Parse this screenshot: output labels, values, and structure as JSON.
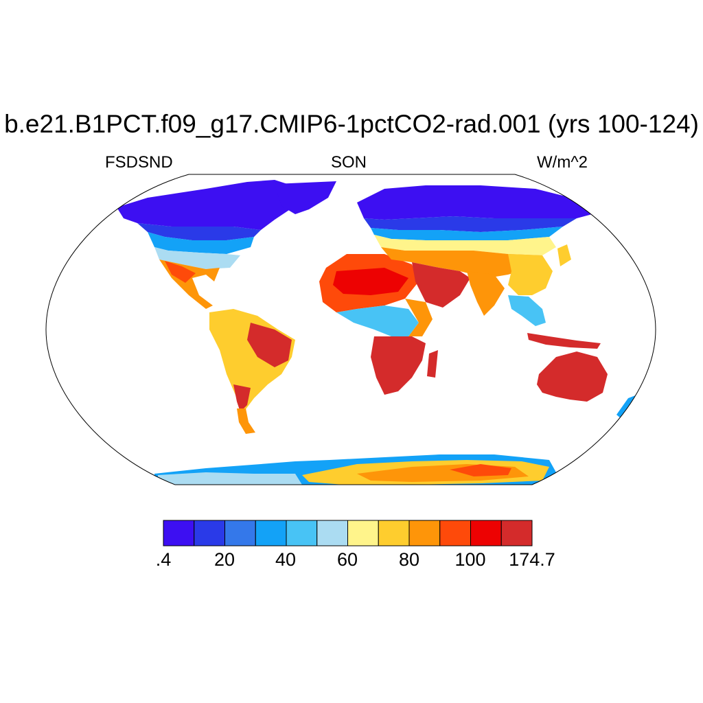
{
  "title": "b.e21.B1PCT.f09_g17.CMIP6-1pctCO2-rad.001 (yrs 100-124)",
  "left_string": "FSDSND",
  "center_string": "SON",
  "right_string": "W/m^2",
  "colorbar": {
    "colors": [
      "#3d0ff2",
      "#2a3ae8",
      "#3478ea",
      "#13a2f7",
      "#48c3f5",
      "#abdcf2",
      "#fff48b",
      "#fecd2e",
      "#fe9509",
      "#fe4a0a",
      "#ed0202",
      "#d42b2b"
    ],
    "labels": [
      ".4",
      "20",
      "40",
      "60",
      "80",
      "100",
      "174.7"
    ]
  },
  "chart_data": {
    "type": "heatmap",
    "variable": "FSDSND",
    "season": "SON",
    "units": "W/m^2",
    "projection": "Robinson",
    "levels": [
      0.4,
      10,
      20,
      30,
      40,
      50,
      60,
      70,
      80,
      90,
      100,
      110,
      174.7
    ],
    "tick_labels": [
      ".4",
      "20",
      "40",
      "60",
      "80",
      "100",
      "174.7"
    ]
  }
}
